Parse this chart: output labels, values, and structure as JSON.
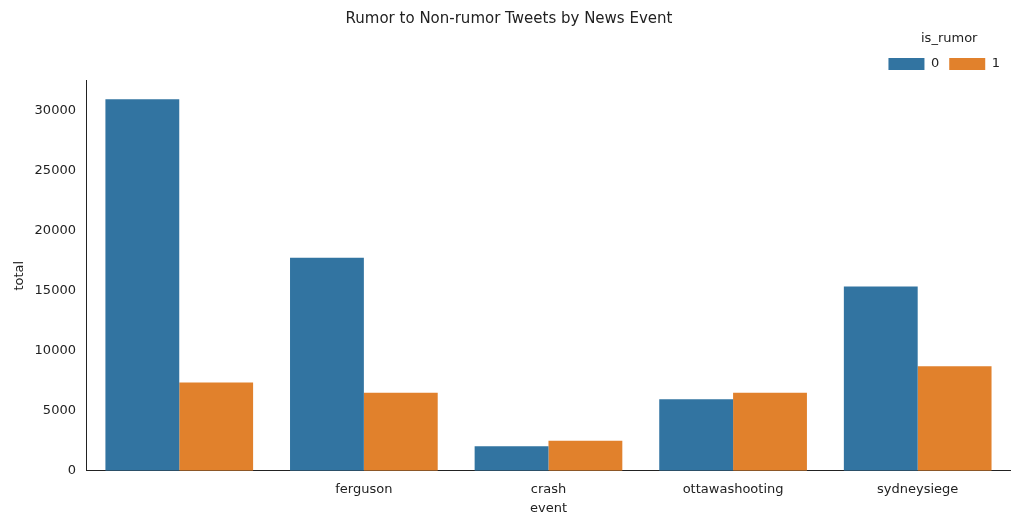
{
  "chart_data": {
    "type": "bar",
    "title": "Rumor to Non-rumor Tweets by News Event",
    "xlabel": "event",
    "ylabel": "total",
    "legend_title": "is_rumor",
    "categories": [
      null,
      "ferguson",
      "crash",
      "ottawashooting",
      "sydneysiege"
    ],
    "series": [
      {
        "name": "0",
        "color": "#3274a1",
        "values": [
          30950,
          17750,
          2050,
          5950,
          15350
        ]
      },
      {
        "name": "1",
        "color": "#e1812c",
        "values": [
          7350,
          6500,
          2500,
          6500,
          8700
        ]
      }
    ],
    "ylim": [
      0,
      32500
    ],
    "yticks": [
      0,
      5000,
      10000,
      15000,
      20000,
      25000,
      30000
    ],
    "grid": false,
    "legend": "top right"
  }
}
